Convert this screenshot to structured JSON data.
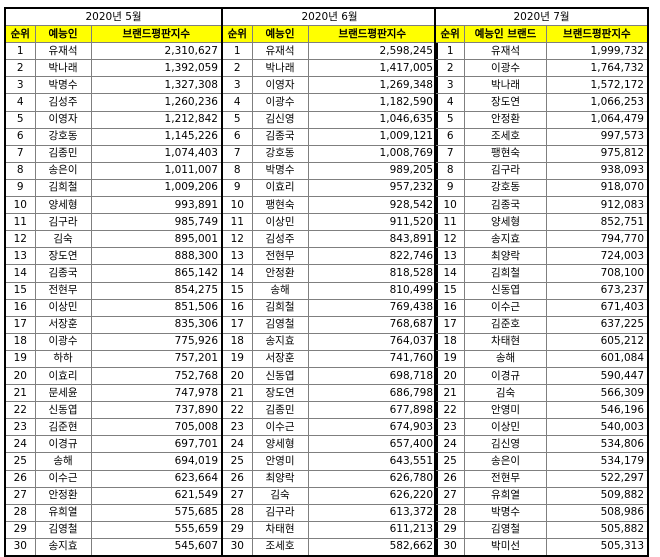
{
  "months": [
    {
      "period": "2020년 5월",
      "headers": [
        "순위",
        "예능인",
        "브랜드평판지수"
      ],
      "rows": [
        [
          "1",
          "유재석",
          "2,310,627"
        ],
        [
          "2",
          "박나래",
          "1,392,059"
        ],
        [
          "3",
          "박명수",
          "1,327,308"
        ],
        [
          "4",
          "김성주",
          "1,260,236"
        ],
        [
          "5",
          "이영자",
          "1,212,842"
        ],
        [
          "6",
          "강호동",
          "1,145,226"
        ],
        [
          "7",
          "김종민",
          "1,074,403"
        ],
        [
          "8",
          "송은이",
          "1,011,007"
        ],
        [
          "9",
          "김희철",
          "1,009,206"
        ],
        [
          "10",
          "양세형",
          "993,891"
        ],
        [
          "11",
          "김구라",
          "985,749"
        ],
        [
          "12",
          "김숙",
          "895,001"
        ],
        [
          "13",
          "장도연",
          "888,300"
        ],
        [
          "14",
          "김종국",
          "865,142"
        ],
        [
          "15",
          "전현무",
          "854,275"
        ],
        [
          "16",
          "이상민",
          "851,506"
        ],
        [
          "17",
          "서장훈",
          "835,306"
        ],
        [
          "18",
          "이광수",
          "775,926"
        ],
        [
          "19",
          "하하",
          "757,201"
        ],
        [
          "20",
          "이효리",
          "752,768"
        ],
        [
          "21",
          "문세윤",
          "747,978"
        ],
        [
          "22",
          "신동엽",
          "737,890"
        ],
        [
          "23",
          "김준현",
          "705,008"
        ],
        [
          "24",
          "이경규",
          "697,701"
        ],
        [
          "25",
          "송해",
          "694,019"
        ],
        [
          "26",
          "이수근",
          "623,664"
        ],
        [
          "27",
          "안정환",
          "621,549"
        ],
        [
          "28",
          "유희열",
          "575,685"
        ],
        [
          "29",
          "김영철",
          "555,659"
        ],
        [
          "30",
          "송지효",
          "545,607"
        ]
      ]
    },
    {
      "period": "2020년 6월",
      "headers": [
        "순위",
        "예능인",
        "브랜드평판지수"
      ],
      "rows": [
        [
          "1",
          "유재석",
          "2,598,245"
        ],
        [
          "2",
          "박나래",
          "1,417,005"
        ],
        [
          "3",
          "이영자",
          "1,269,348"
        ],
        [
          "4",
          "이광수",
          "1,182,590"
        ],
        [
          "5",
          "김신영",
          "1,046,635"
        ],
        [
          "6",
          "김종국",
          "1,009,121"
        ],
        [
          "7",
          "강호동",
          "1,008,769"
        ],
        [
          "8",
          "박명수",
          "989,205"
        ],
        [
          "9",
          "이효리",
          "957,232"
        ],
        [
          "10",
          "팽현숙",
          "928,542"
        ],
        [
          "11",
          "이상민",
          "911,520"
        ],
        [
          "12",
          "김성주",
          "843,891"
        ],
        [
          "13",
          "전현무",
          "822,746"
        ],
        [
          "14",
          "안정환",
          "818,528"
        ],
        [
          "15",
          "송해",
          "810,499"
        ],
        [
          "16",
          "김희철",
          "769,438"
        ],
        [
          "17",
          "김영철",
          "768,687"
        ],
        [
          "18",
          "송지효",
          "764,037"
        ],
        [
          "19",
          "서장훈",
          "741,760"
        ],
        [
          "20",
          "신동엽",
          "698,718"
        ],
        [
          "21",
          "장도연",
          "686,798"
        ],
        [
          "22",
          "김종민",
          "677,898"
        ],
        [
          "23",
          "이수근",
          "674,903"
        ],
        [
          "24",
          "양세형",
          "657,400"
        ],
        [
          "25",
          "안영미",
          "643,551"
        ],
        [
          "26",
          "최양락",
          "626,780"
        ],
        [
          "27",
          "김숙",
          "626,220"
        ],
        [
          "28",
          "김구라",
          "613,372"
        ],
        [
          "29",
          "차태현",
          "611,213"
        ],
        [
          "30",
          "조세호",
          "582,662"
        ]
      ]
    },
    {
      "period": "2020년 7월",
      "headers": [
        "순위",
        "예능인 브랜드",
        "브랜드평판지수"
      ],
      "rows": [
        [
          "1",
          "유재석",
          "1,999,732"
        ],
        [
          "2",
          "이광수",
          "1,764,732"
        ],
        [
          "3",
          "박나래",
          "1,572,172"
        ],
        [
          "4",
          "장도연",
          "1,066,253"
        ],
        [
          "5",
          "안정환",
          "1,064,479"
        ],
        [
          "6",
          "조세호",
          "997,573"
        ],
        [
          "7",
          "팽현숙",
          "975,812"
        ],
        [
          "8",
          "김구라",
          "938,093"
        ],
        [
          "9",
          "강호동",
          "918,070"
        ],
        [
          "10",
          "김종국",
          "912,083"
        ],
        [
          "11",
          "양세형",
          "852,751"
        ],
        [
          "12",
          "송지효",
          "794,770"
        ],
        [
          "13",
          "최양락",
          "724,003"
        ],
        [
          "14",
          "김희철",
          "708,100"
        ],
        [
          "15",
          "신동엽",
          "673,237"
        ],
        [
          "16",
          "이수근",
          "671,403"
        ],
        [
          "17",
          "김준호",
          "637,225"
        ],
        [
          "18",
          "차태현",
          "605,212"
        ],
        [
          "19",
          "송해",
          "601,084"
        ],
        [
          "20",
          "이경규",
          "590,447"
        ],
        [
          "21",
          "김숙",
          "566,309"
        ],
        [
          "22",
          "안영미",
          "546,196"
        ],
        [
          "23",
          "이상민",
          "540,003"
        ],
        [
          "24",
          "김신영",
          "534,806"
        ],
        [
          "25",
          "송은이",
          "534,179"
        ],
        [
          "26",
          "전현무",
          "522,297"
        ],
        [
          "27",
          "유희열",
          "509,882"
        ],
        [
          "28",
          "박명수",
          "508,986"
        ],
        [
          "29",
          "김영철",
          "505,882"
        ],
        [
          "30",
          "박미선",
          "505,313"
        ]
      ]
    }
  ]
}
